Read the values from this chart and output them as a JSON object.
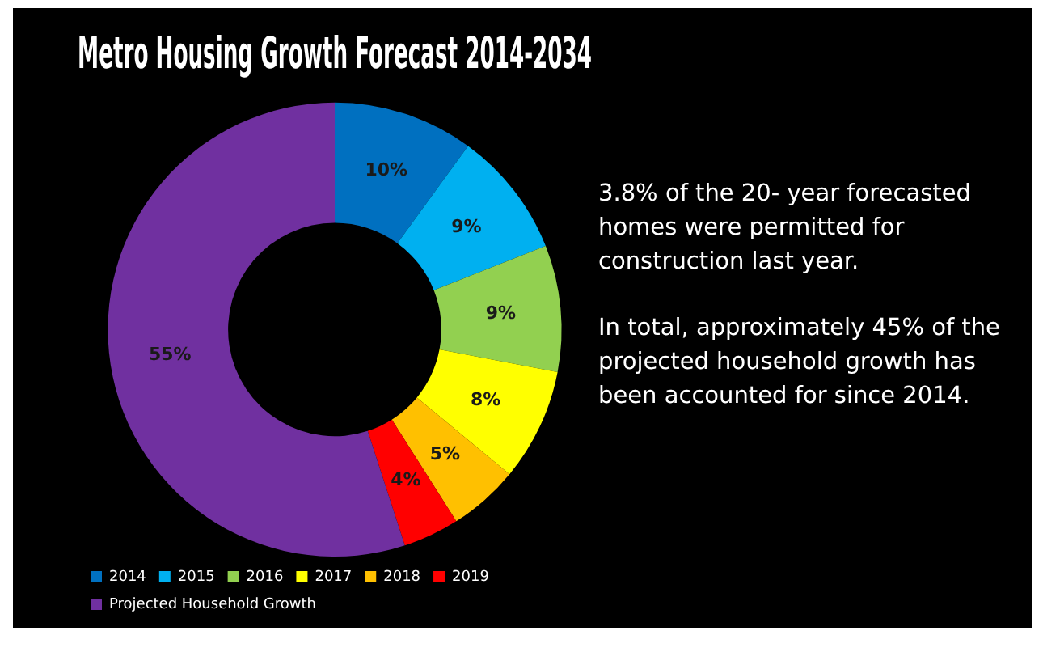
{
  "chart_data": {
    "type": "donut",
    "title": "Metro Housing Growth Forecast 2014-2034",
    "categories": [
      "2014",
      "2015",
      "2016",
      "2017",
      "2018",
      "2019",
      "Projected Household Growth"
    ],
    "values": [
      10,
      9,
      9,
      8,
      5,
      4,
      55
    ],
    "colors": [
      "#0070c0",
      "#00b0f0",
      "#92d050",
      "#ffff00",
      "#ffc000",
      "#ff0000",
      "#7030a0"
    ],
    "value_labels": [
      "10%",
      "9%",
      "9%",
      "8%",
      "5%",
      "4%",
      "55%"
    ],
    "legend": "bottom left",
    "annotations": [
      "3.8% of the 20- year forecasted homes were permitted for construction last year.",
      "In total, approximately 45% of the projected household growth has been accounted for since 2014."
    ]
  }
}
